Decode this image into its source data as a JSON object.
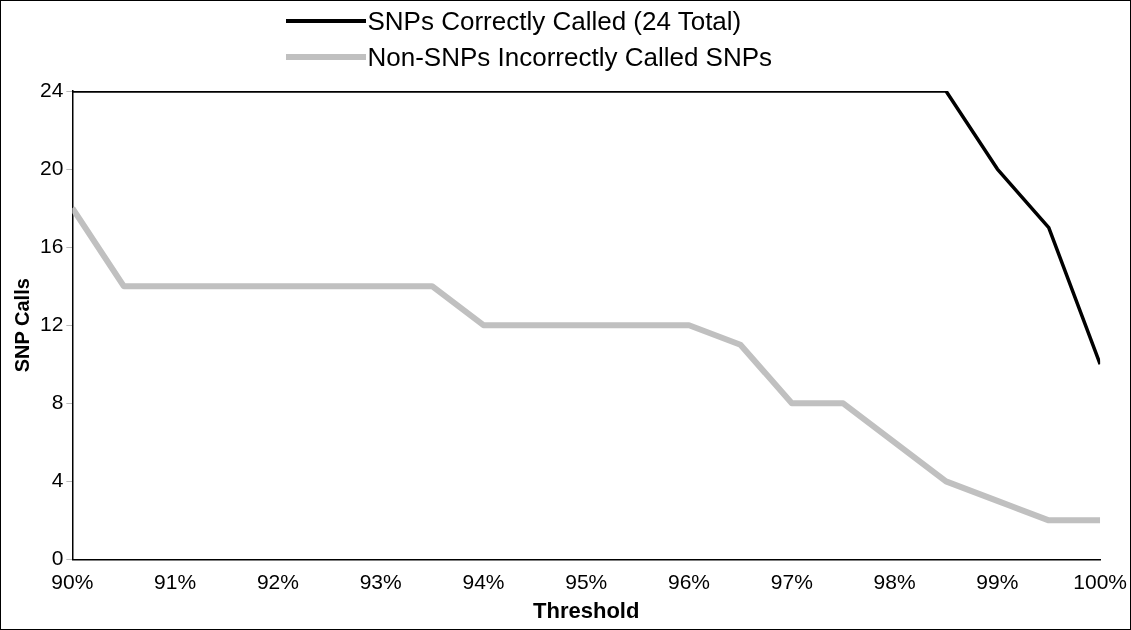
{
  "chart_data": {
    "type": "line",
    "xlabel": "Threshold",
    "ylabel": "SNP Calls",
    "x": [
      90,
      90.5,
      91,
      91.5,
      92,
      92.5,
      93,
      93.5,
      94,
      94.5,
      95,
      95.5,
      96,
      96.5,
      97,
      97.5,
      98,
      98.5,
      99,
      99.5,
      100
    ],
    "series": [
      {
        "name": "SNPs Correctly Called (24 Total)",
        "color": "#000000",
        "values": [
          24,
          24,
          24,
          24,
          24,
          24,
          24,
          24,
          24,
          24,
          24,
          24,
          24,
          24,
          24,
          24,
          24,
          24,
          20,
          17,
          10
        ]
      },
      {
        "name": "Non-SNPs Incorrectly Called SNPs",
        "color": "#c0c0c0",
        "values": [
          18,
          14,
          14,
          14,
          14,
          14,
          14,
          14,
          12,
          12,
          12,
          12,
          12,
          11,
          8,
          8,
          6,
          4,
          3,
          2,
          2
        ]
      }
    ],
    "xlim": [
      90,
      100
    ],
    "xticks": [
      {
        "value": 90,
        "label": "90%"
      },
      {
        "value": 91,
        "label": "91%"
      },
      {
        "value": 92,
        "label": "92%"
      },
      {
        "value": 93,
        "label": "93%"
      },
      {
        "value": 94,
        "label": "94%"
      },
      {
        "value": 95,
        "label": "95%"
      },
      {
        "value": 96,
        "label": "96%"
      },
      {
        "value": 97,
        "label": "97%"
      },
      {
        "value": 98,
        "label": "98%"
      },
      {
        "value": 99,
        "label": "99%"
      },
      {
        "value": 100,
        "label": "100%"
      }
    ],
    "ylim": [
      0,
      24
    ],
    "yticks": [
      0,
      4,
      8,
      12,
      16,
      20,
      24
    ],
    "grid": false,
    "legend": "top",
    "marker": "none",
    "line_style": "solid"
  }
}
